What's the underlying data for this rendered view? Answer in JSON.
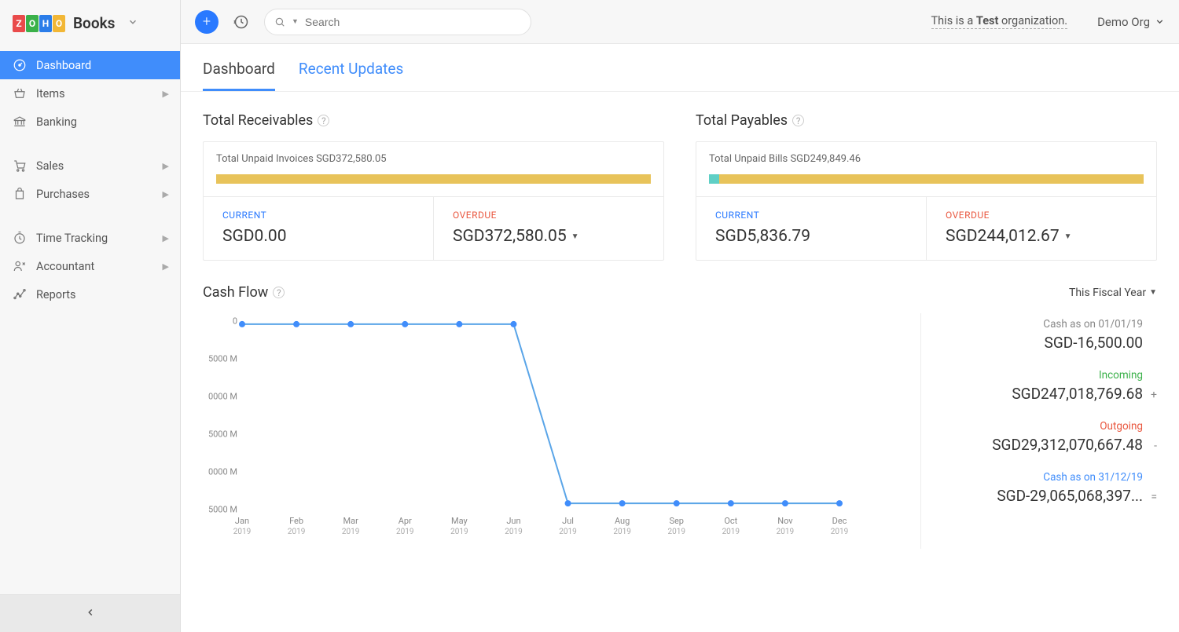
{
  "brand": {
    "logo_letters": [
      "Z",
      "O",
      "H",
      "O"
    ],
    "logo_colors": [
      "#e94b4b",
      "#3bb14a",
      "#2b7de9",
      "#f2b736"
    ],
    "name": "Books"
  },
  "sidebar": {
    "items": [
      {
        "label": "Dashboard",
        "icon": "dashboard",
        "active": true,
        "expandable": false
      },
      {
        "label": "Items",
        "icon": "basket",
        "expandable": true
      },
      {
        "label": "Banking",
        "icon": "bank",
        "expandable": false
      }
    ],
    "group2": [
      {
        "label": "Sales",
        "icon": "cart",
        "expandable": true
      },
      {
        "label": "Purchases",
        "icon": "bag",
        "expandable": true
      }
    ],
    "group3": [
      {
        "label": "Time Tracking",
        "icon": "timer",
        "expandable": true
      },
      {
        "label": "Accountant",
        "icon": "accountant",
        "expandable": true
      },
      {
        "label": "Reports",
        "icon": "reports",
        "expandable": false
      }
    ]
  },
  "topbar": {
    "search_placeholder": "Search",
    "test_org_prefix": "This is a ",
    "test_org_bold": "Test",
    "test_org_suffix": " organization.",
    "org_name": "Demo Org"
  },
  "tabs": {
    "dashboard": "Dashboard",
    "recent": "Recent Updates"
  },
  "receivables": {
    "title": "Total Receivables",
    "unpaid": "Total Unpaid Invoices SGD372,580.05",
    "bar_color": "#e8c35a",
    "current_seg_color": "#e8c35a",
    "current_seg_pct": 0,
    "current_label": "CURRENT",
    "current_value": "SGD0.00",
    "overdue_label": "OVERDUE",
    "overdue_value": "SGD372,580.05"
  },
  "payables": {
    "title": "Total Payables",
    "unpaid": "Total Unpaid Bills SGD249,849.46",
    "bar_color": "#e8c35a",
    "current_seg_color": "#5fcfc5",
    "current_seg_pct": 2.3,
    "current_label": "CURRENT",
    "current_value": "SGD5,836.79",
    "overdue_label": "OVERDUE",
    "overdue_value": "SGD244,012.67"
  },
  "cashflow": {
    "title": "Cash Flow",
    "period": "This Fiscal Year",
    "chart": {
      "type": "line",
      "line_color": "#5aa5e8",
      "marker_color": "#408dfb",
      "marker_radius": 4,
      "line_width": 2,
      "background": "#ffffff",
      "ylabels": [
        "0",
        "5000 M",
        "0000 M",
        "5000 M",
        "0000 M",
        "5000 M"
      ],
      "xlabels_month": [
        "Jan",
        "Feb",
        "Mar",
        "Apr",
        "May",
        "Jun",
        "Jul",
        "Aug",
        "Sep",
        "Oct",
        "Nov",
        "Dec"
      ],
      "xlabels_year": "2019",
      "values_norm": [
        0,
        0,
        0,
        0,
        0,
        0,
        0,
        -29000,
        -29000,
        -29000,
        -29000,
        -29000,
        -29000
      ],
      "y_min": -30000,
      "y_max": 500
    },
    "side": [
      {
        "label": "Cash as on 01/01/19",
        "value": "SGD-16,500.00",
        "label_color": "#888",
        "op": ""
      },
      {
        "label": "Incoming",
        "value": "SGD247,018,769.68",
        "label_color": "#3bb14a",
        "op": "+"
      },
      {
        "label": "Outgoing",
        "value": "SGD29,312,070,667.48",
        "label_color": "#e9573f",
        "op": "-"
      },
      {
        "label": "Cash as on 31/12/19",
        "value": "SGD-29,065,068,397...",
        "label_color": "#408dfb",
        "op": "="
      }
    ]
  }
}
